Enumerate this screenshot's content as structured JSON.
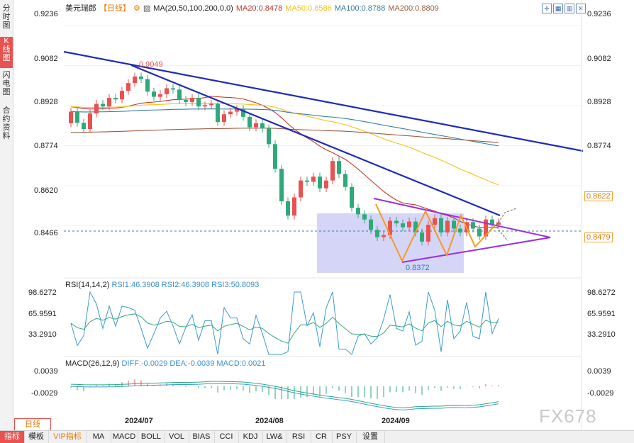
{
  "header": {
    "symbol": "美元瑞郎",
    "period": "【日线】",
    "ma_label": "MA(20,50,100,200,0,0)",
    "ma20": "MA20:0.8478",
    "ma50": "MA50:0.8586",
    "ma100": "MA100:0.8788",
    "ma200": "MA200:0.8809"
  },
  "colors": {
    "up": "#e8524f",
    "down": "#2eaa7a",
    "ma20": "#c0392b",
    "ma50": "#f0c419",
    "ma100": "#3a7ca5",
    "ma200": "#9b5a3c",
    "trend": "#1f2bb5",
    "triangle": "#9b30d9",
    "zigzag": "#f59a23",
    "box": "#c7c7f5"
  },
  "sidebar": {
    "tabs": [
      {
        "label": "分时图"
      },
      {
        "label": "K线图"
      },
      {
        "label": "闪电图"
      },
      {
        "label": "合约资料"
      }
    ]
  },
  "price_axis": {
    "ticks": [
      "0.9236",
      "0.9082",
      "0.8928",
      "0.8774",
      "0.8620",
      "0.8466"
    ],
    "right_ticks": [
      "0.9236",
      "0.9082",
      "0.8928",
      "0.8774"
    ],
    "tag_upper": "0.8622",
    "tag_current": "0.8479"
  },
  "annotations": {
    "high": "0.9049",
    "low": "0.8372"
  },
  "rsi": {
    "header": "RSI(14,14,2)",
    "rsi1": "RSI1:46.3908",
    "rsi2": "RSI2:46.3908",
    "rsi3": "RSI3:50.8093",
    "ticks": [
      "98.6272",
      "65.9591",
      "33.2910"
    ]
  },
  "macd": {
    "header": "MACD(26,12,9)",
    "diff": "DIFF:-0.0029",
    "dea": "DEA:-0.0039",
    "macd": "MACD:0.0021",
    "ticks": [
      "0.0039",
      "-0.0029"
    ]
  },
  "dates": [
    "2024/07",
    "2024/08",
    "2024/09"
  ],
  "period_box": "日线",
  "bottom_tabs": [
    {
      "label": "指标"
    },
    {
      "label": "模板"
    },
    {
      "label": "VIP指标"
    },
    {
      "label": "MA"
    },
    {
      "label": "MACD"
    },
    {
      "label": "BOLL"
    },
    {
      "label": "VOL"
    },
    {
      "label": "BIAS"
    },
    {
      "label": "CCI"
    },
    {
      "label": "KDJ"
    },
    {
      "label": "LW&"
    },
    {
      "label": "RSI"
    },
    {
      "label": "CR"
    },
    {
      "label": "PSY"
    },
    {
      "label": "设置"
    }
  ],
  "watermark": "FX678",
  "chart_data": {
    "type": "candlestick",
    "ylim": [
      0.829,
      0.928
    ],
    "closes": [
      0.8905,
      0.8862,
      0.8838,
      0.8898,
      0.8935,
      0.8925,
      0.8958,
      0.8952,
      0.8985,
      0.9015,
      0.904,
      0.903,
      0.8982,
      0.8962,
      0.8972,
      0.8995,
      0.899,
      0.895,
      0.8942,
      0.8958,
      0.8925,
      0.893,
      0.8935,
      0.8865,
      0.8895,
      0.8905,
      0.8915,
      0.8885,
      0.8845,
      0.886,
      0.884,
      0.878,
      0.8685,
      0.856,
      0.8505,
      0.8575,
      0.864,
      0.8635,
      0.8655,
      0.861,
      0.864,
      0.8715,
      0.8665,
      0.8615,
      0.8535,
      0.851,
      0.849,
      0.845,
      0.8422,
      0.843,
      0.8485,
      0.8475,
      0.846,
      0.8482,
      0.844,
      0.8405,
      0.847,
      0.8495,
      0.844,
      0.8485,
      0.8455,
      0.844,
      0.848,
      0.8455,
      0.8425,
      0.849,
      0.847,
      0.8479
    ],
    "opens": [
      0.886,
      0.8905,
      0.8862,
      0.8838,
      0.8898,
      0.8935,
      0.8925,
      0.8958,
      0.8952,
      0.8985,
      0.9015,
      0.904,
      0.903,
      0.8982,
      0.8962,
      0.8972,
      0.8995,
      0.899,
      0.895,
      0.8942,
      0.8958,
      0.8925,
      0.893,
      0.8935,
      0.8865,
      0.8895,
      0.8905,
      0.8915,
      0.8885,
      0.8845,
      0.886,
      0.884,
      0.878,
      0.8685,
      0.856,
      0.8505,
      0.8575,
      0.864,
      0.8635,
      0.8655,
      0.861,
      0.864,
      0.8715,
      0.8665,
      0.8615,
      0.8535,
      0.851,
      0.849,
      0.845,
      0.8422,
      0.843,
      0.8485,
      0.8475,
      0.846,
      0.8482,
      0.844,
      0.8405,
      0.847,
      0.8495,
      0.844,
      0.8485,
      0.8455,
      0.844,
      0.848,
      0.8455,
      0.8425,
      0.849,
      0.847
    ]
  }
}
